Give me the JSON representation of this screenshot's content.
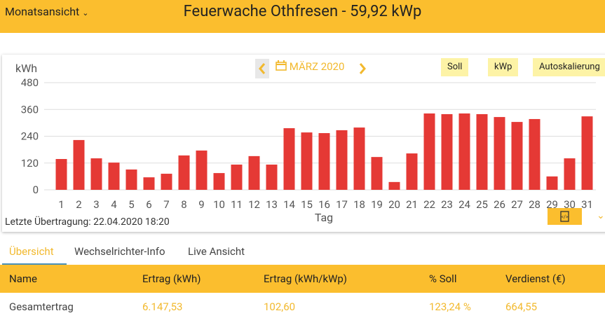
{
  "header": {
    "view_select": "Monatsansicht",
    "title": "Feuerwache Othfresen - 59,92 kWp"
  },
  "nav": {
    "month": "MÄRZ 2020"
  },
  "buttons": [
    "Soll",
    "kWp",
    "Autoskalierung"
  ],
  "chart_data": {
    "type": "bar",
    "y_label": "kWh",
    "x_label": "Tag",
    "color": "#e53935",
    "categories": [
      "1",
      "2",
      "3",
      "4",
      "5",
      "6",
      "7",
      "8",
      "9",
      "10",
      "11",
      "12",
      "13",
      "14",
      "15",
      "16",
      "17",
      "18",
      "19",
      "20",
      "21",
      "22",
      "23",
      "24",
      "25",
      "26",
      "27",
      "28",
      "29",
      "30",
      "31"
    ],
    "values": [
      138,
      223,
      141,
      122,
      91,
      56,
      72,
      154,
      176,
      75,
      113,
      151,
      113,
      276,
      257,
      254,
      267,
      279,
      147,
      35,
      163,
      342,
      339,
      342,
      339,
      326,
      304,
      317,
      60,
      141,
      329
    ],
    "ylim": [
      0,
      480
    ],
    "yticks": [
      0,
      120,
      240,
      360,
      480
    ],
    "grid": true
  },
  "status": "Letzte Übertragung: 22.04.2020 18:20",
  "tabs": [
    "Übersicht",
    "Wechselrichter-Info",
    "Live Ansicht"
  ],
  "table": {
    "header": [
      "Name",
      "Ertrag (kWh)",
      "Ertrag (kWh/kWp)",
      "% Soll",
      "Verdienst (€)"
    ],
    "rows": [
      [
        "Gesamtertrag",
        "6.147,53",
        "102,60",
        "123,24 %",
        "664,55"
      ]
    ]
  }
}
